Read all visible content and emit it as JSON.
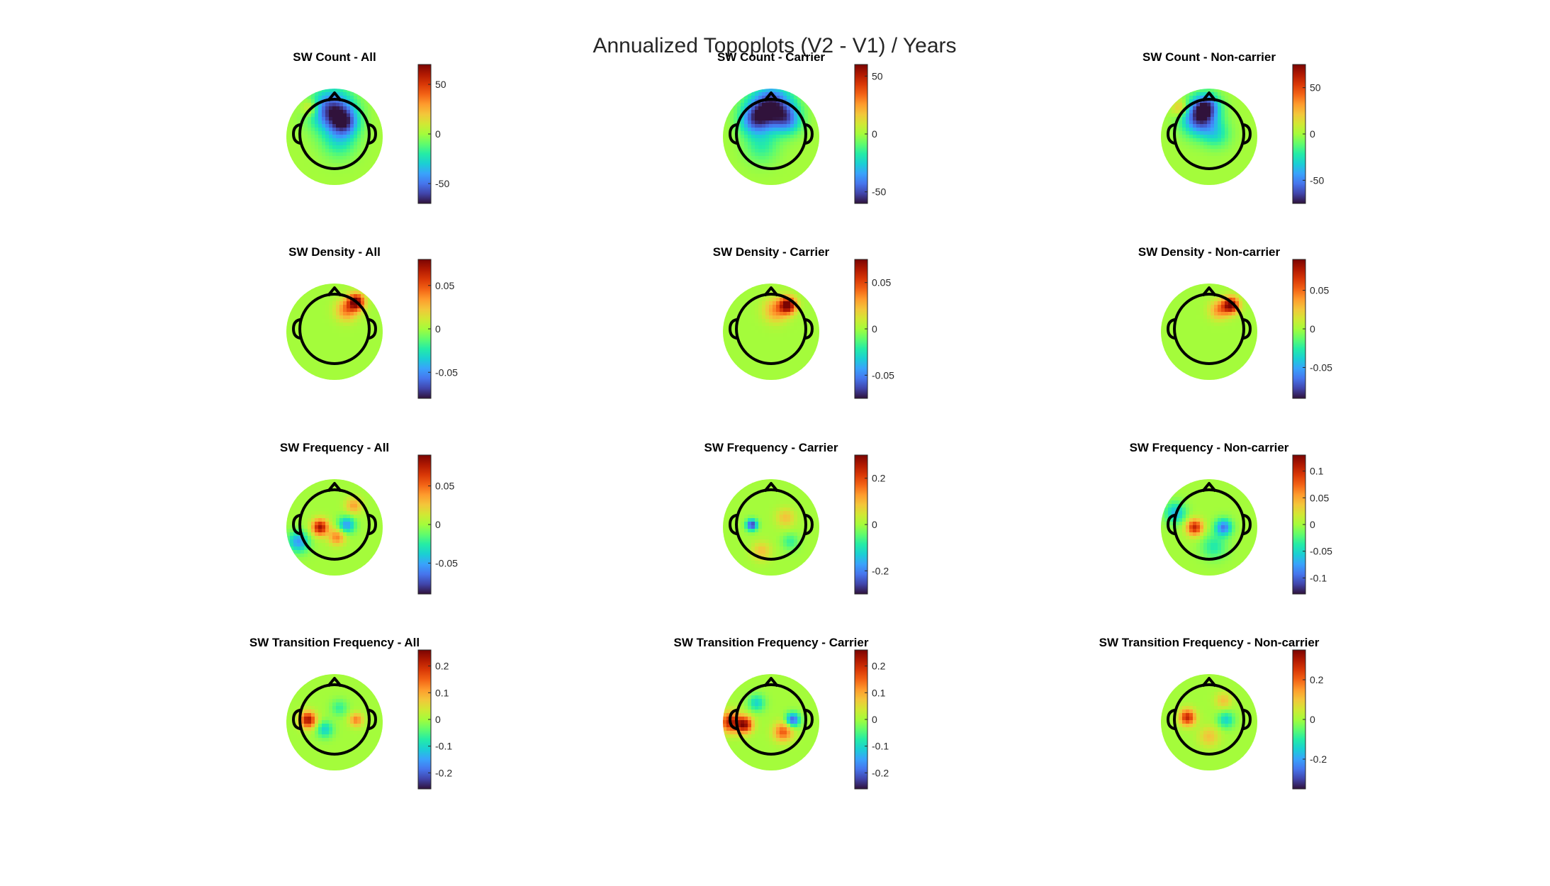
{
  "figure": {
    "title": "Annualized Topoplots (V2 - V1) / Years",
    "colormap": [
      "#30123b",
      "#4145ab",
      "#4675ed",
      "#39a2fc",
      "#1bcfd4",
      "#24eca6",
      "#61fc6c",
      "#a4fc3b",
      "#d1e834",
      "#f3c63a",
      "#fe9b2d",
      "#f36315",
      "#d93806",
      "#b11901",
      "#7a0402"
    ]
  },
  "chart_data": [
    {
      "type": "heatmap",
      "title": "SW Count - All",
      "clim": [
        -70,
        70
      ],
      "ticks": [
        -50,
        0,
        50
      ],
      "tick_labels": [
        "-50",
        "0",
        "50"
      ],
      "blobs": [
        {
          "x": -0.05,
          "y": 0.55,
          "s": 0.3,
          "a": -0.9
        },
        {
          "x": 0.22,
          "y": 0.3,
          "s": 0.2,
          "a": -0.6
        },
        {
          "x": 0.1,
          "y": -0.1,
          "s": 0.25,
          "a": -0.3
        },
        {
          "x": -0.5,
          "y": 0.6,
          "s": 0.12,
          "a": 0.35
        }
      ]
    },
    {
      "type": "heatmap",
      "title": "SW Count - Carrier",
      "clim": [
        -60,
        60
      ],
      "ticks": [
        -50,
        0,
        50
      ],
      "tick_labels": [
        "-50",
        "0",
        "50"
      ],
      "blobs": [
        {
          "x": 0.0,
          "y": 0.62,
          "s": 0.3,
          "a": -1.0
        },
        {
          "x": -0.35,
          "y": 0.35,
          "s": 0.22,
          "a": -0.6
        },
        {
          "x": 0.35,
          "y": 0.35,
          "s": 0.2,
          "a": -0.5
        },
        {
          "x": -0.2,
          "y": -0.2,
          "s": 0.25,
          "a": -0.25
        }
      ]
    },
    {
      "type": "heatmap",
      "title": "SW Count - Non-carrier",
      "clim": [
        -75,
        75
      ],
      "ticks": [
        -50,
        0,
        50
      ],
      "tick_labels": [
        "-50",
        "0",
        "50"
      ],
      "blobs": [
        {
          "x": -0.2,
          "y": 0.4,
          "s": 0.25,
          "a": -0.9
        },
        {
          "x": -0.05,
          "y": 0.65,
          "s": 0.18,
          "a": -0.6
        },
        {
          "x": 0.15,
          "y": 0.05,
          "s": 0.2,
          "a": -0.3
        },
        {
          "x": -0.6,
          "y": 0.6,
          "s": 0.12,
          "a": 0.4
        }
      ]
    },
    {
      "type": "heatmap",
      "title": "SW Density - All",
      "clim": [
        -0.08,
        0.08
      ],
      "ticks": [
        -0.05,
        0,
        0.05
      ],
      "tick_labels": [
        "-0.05",
        "0",
        "0.05"
      ],
      "blobs": [
        {
          "x": 0.45,
          "y": 0.62,
          "s": 0.12,
          "a": 1.0
        },
        {
          "x": 0.25,
          "y": 0.45,
          "s": 0.16,
          "a": 0.5
        }
      ]
    },
    {
      "type": "heatmap",
      "title": "SW Density - Carrier",
      "clim": [
        -0.075,
        0.075
      ],
      "ticks": [
        -0.05,
        0,
        0.05
      ],
      "tick_labels": [
        "-0.05",
        "0",
        "0.05"
      ],
      "blobs": [
        {
          "x": 0.35,
          "y": 0.55,
          "s": 0.12,
          "a": 1.0
        },
        {
          "x": 0.1,
          "y": 0.45,
          "s": 0.18,
          "a": 0.45
        }
      ]
    },
    {
      "type": "heatmap",
      "title": "SW Density - Non-carrier",
      "clim": [
        -0.09,
        0.09
      ],
      "ticks": [
        -0.05,
        0,
        0.05
      ],
      "tick_labels": [
        "-0.05",
        "0",
        "0.05"
      ],
      "blobs": [
        {
          "x": 0.45,
          "y": 0.55,
          "s": 0.12,
          "a": 1.0
        },
        {
          "x": 0.2,
          "y": 0.45,
          "s": 0.14,
          "a": 0.45
        }
      ]
    },
    {
      "type": "heatmap",
      "title": "SW Frequency - All",
      "clim": [
        -0.09,
        0.09
      ],
      "ticks": [
        -0.05,
        0,
        0.05
      ],
      "tick_labels": [
        "-0.05",
        "0",
        "0.05"
      ],
      "blobs": [
        {
          "x": -0.3,
          "y": 0.0,
          "s": 0.12,
          "a": 0.9
        },
        {
          "x": 0.25,
          "y": 0.05,
          "s": 0.12,
          "a": -0.6
        },
        {
          "x": -0.75,
          "y": -0.3,
          "s": 0.15,
          "a": -0.6
        },
        {
          "x": 0.05,
          "y": -0.2,
          "s": 0.12,
          "a": 0.5
        },
        {
          "x": 0.4,
          "y": 0.45,
          "s": 0.12,
          "a": 0.4
        }
      ]
    },
    {
      "type": "heatmap",
      "title": "SW Frequency - Carrier",
      "clim": [
        -0.3,
        0.3
      ],
      "ticks": [
        -0.2,
        0,
        0.2
      ],
      "tick_labels": [
        "-0.2",
        "0",
        "0.2"
      ],
      "blobs": [
        {
          "x": -0.4,
          "y": 0.05,
          "s": 0.08,
          "a": -0.9
        },
        {
          "x": 0.3,
          "y": 0.2,
          "s": 0.14,
          "a": 0.3
        },
        {
          "x": -0.2,
          "y": -0.5,
          "s": 0.14,
          "a": 0.3
        },
        {
          "x": 0.4,
          "y": -0.3,
          "s": 0.12,
          "a": -0.25
        }
      ]
    },
    {
      "type": "heatmap",
      "title": "SW Frequency - Non-carrier",
      "clim": [
        -0.13,
        0.13
      ],
      "ticks": [
        -0.1,
        -0.05,
        0,
        0.05,
        0.1
      ],
      "tick_labels": [
        "-0.1",
        "-0.05",
        "0",
        "0.05",
        "0.1"
      ],
      "blobs": [
        {
          "x": -0.3,
          "y": 0.0,
          "s": 0.12,
          "a": 0.8
        },
        {
          "x": 0.3,
          "y": 0.0,
          "s": 0.12,
          "a": -0.7
        },
        {
          "x": -0.7,
          "y": 0.3,
          "s": 0.15,
          "a": -0.5
        },
        {
          "x": 0.1,
          "y": -0.4,
          "s": 0.18,
          "a": -0.3
        }
      ]
    },
    {
      "type": "heatmap",
      "title": "SW Transition Frequency - All",
      "clim": [
        -0.26,
        0.26
      ],
      "ticks": [
        -0.2,
        -0.1,
        0,
        0.1,
        0.2
      ],
      "tick_labels": [
        "-0.2",
        "-0.1",
        "0",
        "0.1",
        "0.2"
      ],
      "blobs": [
        {
          "x": -0.55,
          "y": 0.05,
          "s": 0.12,
          "a": 0.9
        },
        {
          "x": 0.45,
          "y": 0.05,
          "s": 0.1,
          "a": 0.5
        },
        {
          "x": -0.2,
          "y": -0.15,
          "s": 0.12,
          "a": -0.4
        },
        {
          "x": 0.1,
          "y": 0.3,
          "s": 0.12,
          "a": -0.25
        }
      ]
    },
    {
      "type": "heatmap",
      "title": "SW Transition Frequency - Carrier",
      "clim": [
        -0.26,
        0.26
      ],
      "ticks": [
        -0.2,
        -0.1,
        0,
        0.1,
        0.2
      ],
      "tick_labels": [
        "-0.2",
        "-0.1",
        "0",
        "0.1",
        "0.2"
      ],
      "blobs": [
        {
          "x": -0.55,
          "y": -0.05,
          "s": 0.12,
          "a": 0.9
        },
        {
          "x": 0.45,
          "y": 0.05,
          "s": 0.1,
          "a": -0.8
        },
        {
          "x": -0.85,
          "y": 0.0,
          "s": 0.15,
          "a": 0.8
        },
        {
          "x": 0.25,
          "y": -0.2,
          "s": 0.14,
          "a": 0.6
        },
        {
          "x": -0.3,
          "y": 0.4,
          "s": 0.12,
          "a": -0.4
        }
      ]
    },
    {
      "type": "heatmap",
      "title": "SW Transition Frequency - Non-carrier",
      "clim": [
        -0.35,
        0.35
      ],
      "ticks": [
        -0.2,
        0,
        0.2
      ],
      "tick_labels": [
        "-0.2",
        "0",
        "0.2"
      ],
      "blobs": [
        {
          "x": -0.45,
          "y": 0.1,
          "s": 0.12,
          "a": 0.8
        },
        {
          "x": 0.35,
          "y": 0.05,
          "s": 0.12,
          "a": -0.4
        },
        {
          "x": 0.0,
          "y": -0.3,
          "s": 0.15,
          "a": 0.3
        },
        {
          "x": 0.3,
          "y": 0.45,
          "s": 0.12,
          "a": 0.3
        }
      ]
    }
  ]
}
